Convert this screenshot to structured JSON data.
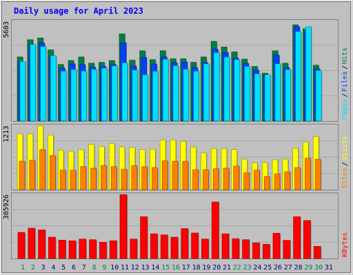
{
  "chart_data": {
    "type": "bar",
    "title": "Daily usage for April 2023",
    "colors": {
      "background": "#c0c0c0",
      "title": "#0000ff",
      "hits": "#008040",
      "files": "#0040ff",
      "pages": "#00e0ff",
      "visits": "#ffff00",
      "sites": "#ff8000",
      "kbytes": "#ff0000",
      "weekend_label": "#00805c",
      "weekday_label": "#000080"
    },
    "categories": [
      "1",
      "2",
      "3",
      "4",
      "5",
      "6",
      "7",
      "8",
      "9",
      "10",
      "11",
      "12",
      "13",
      "14",
      "15",
      "16",
      "17",
      "18",
      "19",
      "20",
      "21",
      "22",
      "23",
      "24",
      "25",
      "26",
      "27",
      "28",
      "29",
      "30",
      "31"
    ],
    "weekend_days": [
      "1",
      "2",
      "8",
      "9",
      "15",
      "16",
      "22",
      "23",
      "29",
      "30"
    ],
    "panels": [
      {
        "name": "hits-files-pages",
        "scale_label": "5603",
        "ylim": [
          0,
          5603
        ],
        "legend": [
          {
            "label": "Pages",
            "color": "#00e0ff"
          },
          {
            "label": "Files",
            "color": "#0040ff"
          },
          {
            "label": "Hits",
            "color": "#008040"
          }
        ],
        "series": [
          {
            "name": "Hits",
            "values": [
              3600,
              4570,
              4670,
              4000,
              3180,
              3400,
              3600,
              3250,
              3300,
              3400,
              4900,
              3420,
              3950,
              3450,
              3950,
              3500,
              3500,
              3300,
              3600,
              4480,
              4160,
              3890,
              3480,
              3070,
              2690,
              3950,
              3250,
              5410,
              5190,
              3140,
              0
            ]
          },
          {
            "name": "Files",
            "values": [
              3350,
              4300,
              4390,
              3670,
              2980,
              3210,
              3170,
              3020,
              3080,
              3190,
              4400,
              3090,
              3580,
              3200,
              3600,
              3280,
              3320,
              3000,
              3290,
              4040,
              3860,
              3540,
              3240,
              2860,
              2560,
              3710,
              3000,
              5300,
              5080,
              2930,
              0
            ]
          },
          {
            "name": "Pages",
            "values": [
              3350,
              4300,
              4190,
              3670,
              2800,
              2890,
              2810,
              2900,
              2970,
              3090,
              3270,
              2860,
              2600,
              2800,
              3470,
              3100,
              2910,
              2800,
              3210,
              3840,
              3590,
              3450,
              3070,
              2650,
              2600,
              3220,
              2890,
              5030,
              5300,
              2840,
              0
            ]
          }
        ]
      },
      {
        "name": "visits-sites",
        "scale_label": "1213",
        "ylim": [
          0,
          1213
        ],
        "legend": [
          {
            "label": "Sites",
            "color": "#ff8000"
          },
          {
            "label": "Visits",
            "color": "#ffff00"
          }
        ],
        "series": [
          {
            "name": "Visits",
            "values": [
              1060,
              1060,
              1213,
              1040,
              750,
              730,
              760,
              860,
              820,
              880,
              810,
              800,
              760,
              770,
              940,
              940,
              920,
              810,
              700,
              780,
              780,
              760,
              580,
              510,
              520,
              570,
              580,
              790,
              900,
              1010,
              0
            ]
          },
          {
            "name": "Sites",
            "values": [
              540,
              560,
              760,
              650,
              370,
              370,
              440,
              410,
              460,
              440,
              390,
              460,
              440,
              420,
              550,
              540,
              540,
              380,
              380,
              400,
              410,
              450,
              320,
              370,
              250,
              300,
              340,
              420,
              600,
              580,
              0
            ]
          }
        ]
      },
      {
        "name": "kbytes",
        "scale_label": "305926",
        "ylim": [
          0,
          305926
        ],
        "legend": [
          {
            "label": "KBytes",
            "color": "#ff0000"
          }
        ],
        "series": [
          {
            "name": "KBytes",
            "values": [
              125000,
              145000,
              137000,
              102000,
              88000,
              85000,
              93000,
              90000,
              78000,
              85000,
              305926,
              93000,
              200000,
              118000,
              113000,
              102000,
              143000,
              122000,
              93000,
              270000,
              118000,
              95000,
              90000,
              75000,
              68000,
              121000,
              87000,
              200000,
              182000,
              58000,
              0
            ]
          }
        ]
      }
    ]
  }
}
